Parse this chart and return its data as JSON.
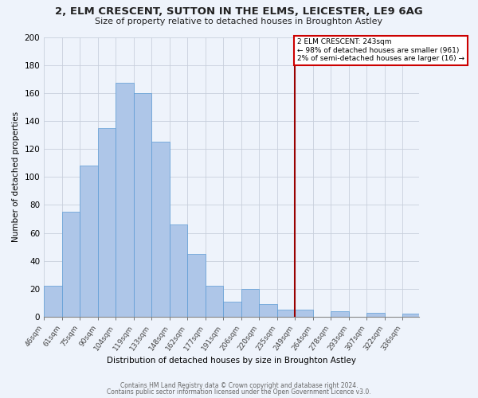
{
  "title": "2, ELM CRESCENT, SUTTON IN THE ELMS, LEICESTER, LE9 6AG",
  "subtitle": "Size of property relative to detached houses in Broughton Astley",
  "xlabel": "Distribution of detached houses by size in Broughton Astley",
  "ylabel": "Number of detached properties",
  "bin_labels": [
    "46sqm",
    "61sqm",
    "75sqm",
    "90sqm",
    "104sqm",
    "119sqm",
    "133sqm",
    "148sqm",
    "162sqm",
    "177sqm",
    "191sqm",
    "206sqm",
    "220sqm",
    "235sqm",
    "249sqm",
    "264sqm",
    "278sqm",
    "293sqm",
    "307sqm",
    "322sqm",
    "336sqm"
  ],
  "bar_heights": [
    22,
    75,
    108,
    135,
    167,
    160,
    125,
    66,
    45,
    22,
    11,
    20,
    9,
    5,
    5,
    0,
    4,
    0,
    3,
    0,
    2
  ],
  "bar_color": "#aec6e8",
  "bar_edge_color": "#5b9bd5",
  "fig_background_color": "#eef3fb",
  "ax_background_color": "#eef3fb",
  "grid_color": "#c8d0dc",
  "vline_x_index": 14,
  "vline_color": "#990000",
  "annotation_box_color": "#ffffff",
  "annotation_box_edge": "#cc0000",
  "ylim": [
    0,
    200
  ],
  "yticks": [
    0,
    20,
    40,
    60,
    80,
    100,
    120,
    140,
    160,
    180,
    200
  ],
  "footer1": "Contains HM Land Registry data © Crown copyright and database right 2024.",
  "footer2": "Contains public sector information licensed under the Open Government Licence v3.0.",
  "bin_edges": [
    46,
    61,
    75,
    90,
    104,
    119,
    133,
    148,
    162,
    177,
    191,
    206,
    220,
    235,
    249,
    264,
    278,
    293,
    307,
    322,
    336,
    350
  ]
}
